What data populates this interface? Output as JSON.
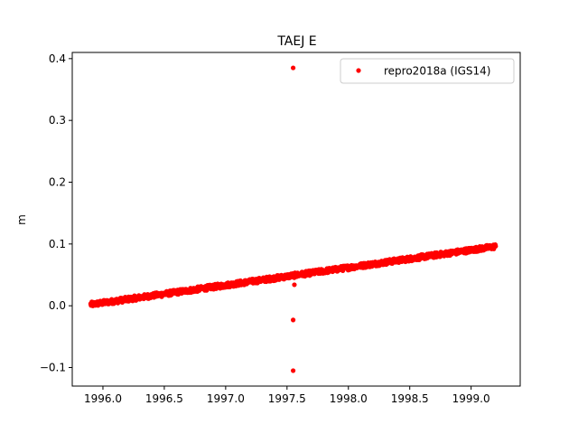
{
  "chart_data": {
    "type": "scatter",
    "title": "TAEJ E",
    "xlabel": "",
    "ylabel": "m",
    "xlim": [
      1995.75,
      1999.4
    ],
    "ylim": [
      -0.13,
      0.41
    ],
    "xticks": [
      1996.0,
      1996.5,
      1997.0,
      1997.5,
      1998.0,
      1998.5,
      1999.0
    ],
    "xtick_labels": [
      "1996.0",
      "1996.5",
      "1997.0",
      "1997.5",
      "1998.0",
      "1998.5",
      "1999.0"
    ],
    "yticks": [
      -0.1,
      0.0,
      0.1,
      0.2,
      0.3,
      0.4
    ],
    "ytick_labels": [
      "−0.1",
      "0.0",
      "0.1",
      "0.2",
      "0.3",
      "0.4"
    ],
    "grid": false,
    "legend_position": "top-right",
    "series": [
      {
        "name": "repro2018a (IGS14)",
        "color": "#ff0000",
        "marker": "circle",
        "trend": {
          "x_start": 1995.9,
          "x_end": 1999.2,
          "y_start": 0.002,
          "y_end": 0.096,
          "scatter": 0.004,
          "step_years": 0.003
        },
        "outliers": [
          {
            "x": 1997.55,
            "y": 0.385
          },
          {
            "x": 1997.56,
            "y": 0.034
          },
          {
            "x": 1997.55,
            "y": -0.023
          },
          {
            "x": 1997.55,
            "y": -0.105
          }
        ]
      }
    ]
  }
}
